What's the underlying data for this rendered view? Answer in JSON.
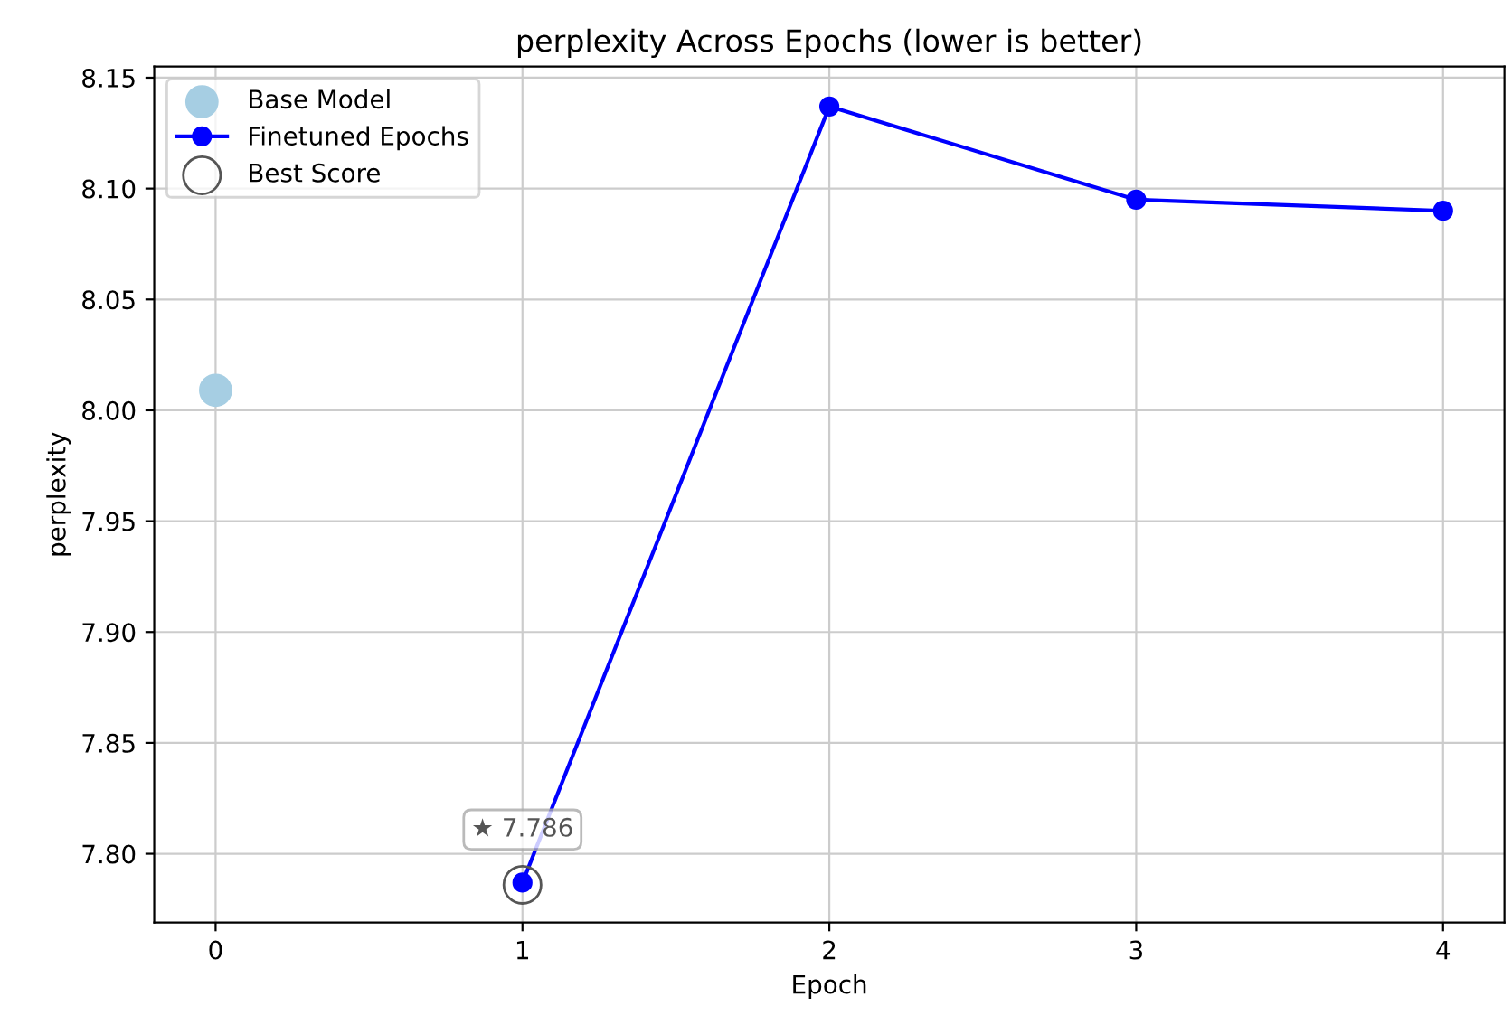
{
  "chart_data": {
    "type": "line",
    "title": "perplexity Across Epochs (lower is better)",
    "xlabel": "Epoch",
    "ylabel": "perplexity",
    "series": [
      {
        "name": "Base Model",
        "type": "scatter",
        "color": "#a6cee3",
        "marker": "circle",
        "x": [
          0
        ],
        "values": [
          8.009
        ]
      },
      {
        "name": "Finetuned Epochs",
        "color": "#0000ff",
        "marker": "circle",
        "line_style": "solid",
        "x": [
          1,
          2,
          3,
          4
        ],
        "values": [
          7.787,
          8.137,
          8.095,
          8.09
        ]
      },
      {
        "name": "Best Score",
        "type": "scatter",
        "color": "#555555",
        "marker": "circle",
        "x": [
          1
        ],
        "values": [
          7.786
        ]
      }
    ],
    "annotations": [
      {
        "text": "★ 7.786",
        "x": 1,
        "y": 7.786
      }
    ],
    "xlim": [
      -0.2,
      4.2
    ],
    "xticks": [
      0,
      1,
      2,
      3,
      4
    ],
    "ylim": [
      7.769,
      8.155
    ],
    "yticks": [
      {
        "value": 7.8,
        "label": "7.80"
      },
      7.85,
      {
        "value": 7.9,
        "label": "7.90"
      },
      7.95,
      {
        "value": 8.0,
        "label": "8.00"
      },
      8.05,
      {
        "value": 8.1,
        "label": "8.10"
      },
      8.15
    ],
    "grid": true,
    "legend": "top left"
  }
}
